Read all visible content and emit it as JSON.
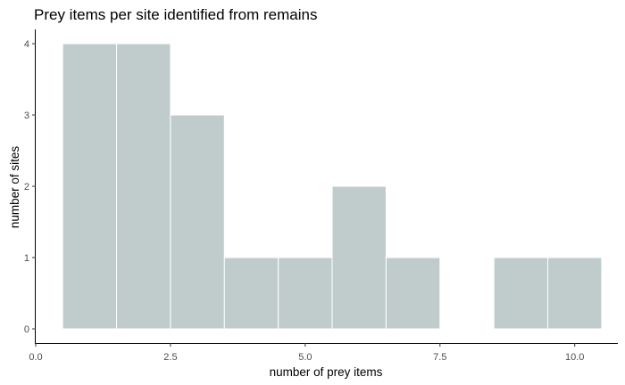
{
  "chart_data": {
    "type": "bar",
    "title": "Prey items per site identified from remains",
    "xlabel": "number of prey items",
    "ylabel": "number of sites",
    "bin_width": 1,
    "bins": [
      {
        "x": 1,
        "count": 4
      },
      {
        "x": 2,
        "count": 4
      },
      {
        "x": 3,
        "count": 3
      },
      {
        "x": 4,
        "count": 1
      },
      {
        "x": 5,
        "count": 1
      },
      {
        "x": 6,
        "count": 2
      },
      {
        "x": 7,
        "count": 1
      },
      {
        "x": 8,
        "count": 0
      },
      {
        "x": 9,
        "count": 1
      },
      {
        "x": 10,
        "count": 1
      }
    ],
    "xlim": [
      0,
      10.8
    ],
    "ylim": [
      -0.2,
      4.2
    ],
    "x_ticks": [
      0,
      2.5,
      5,
      7.5,
      10
    ],
    "x_tick_labels": [
      "0.0",
      "2.5",
      "5.0",
      "7.5",
      "10.0"
    ],
    "y_ticks": [
      0,
      1,
      2,
      3,
      4
    ],
    "y_tick_labels": [
      "0",
      "1",
      "2",
      "3",
      "4"
    ],
    "bar_color": "#c0cccc",
    "bar_outline_color": "#ffffff",
    "grid": false,
    "legend": "none"
  }
}
